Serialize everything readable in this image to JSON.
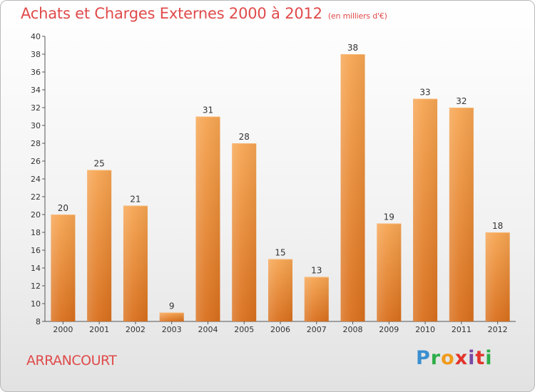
{
  "header": {
    "title": "Achats et Charges Externes 2000 à 2012",
    "subtitle": "(en milliers d'€)"
  },
  "footer": {
    "commune": "ARRANCOURT",
    "logo_letters": [
      "P",
      "r",
      "o",
      "x",
      "i",
      "t",
      "i"
    ],
    "logo_colors": [
      "#3a8fd0",
      "#2eae4a",
      "#f19a1a",
      "#e2342b",
      "#7a49a5",
      "#e2342b",
      "#2eae4a"
    ]
  },
  "chart_data": {
    "type": "bar",
    "title": "Achats et Charges Externes 2000 à 2012",
    "subtitle": "(en milliers d'€)",
    "categories": [
      "2000",
      "2001",
      "2002",
      "2003",
      "2004",
      "2005",
      "2006",
      "2007",
      "2008",
      "2009",
      "2010",
      "2011",
      "2012"
    ],
    "values": [
      20,
      25,
      21,
      9,
      31,
      28,
      15,
      13,
      38,
      19,
      33,
      32,
      18
    ],
    "ylim": [
      8,
      40
    ],
    "yticks": [
      8,
      10,
      12,
      14,
      16,
      18,
      20,
      22,
      24,
      26,
      28,
      30,
      32,
      34,
      36,
      38,
      40
    ],
    "grid": false,
    "bar_color": "#f29b46",
    "xlabel": "",
    "ylabel": ""
  }
}
